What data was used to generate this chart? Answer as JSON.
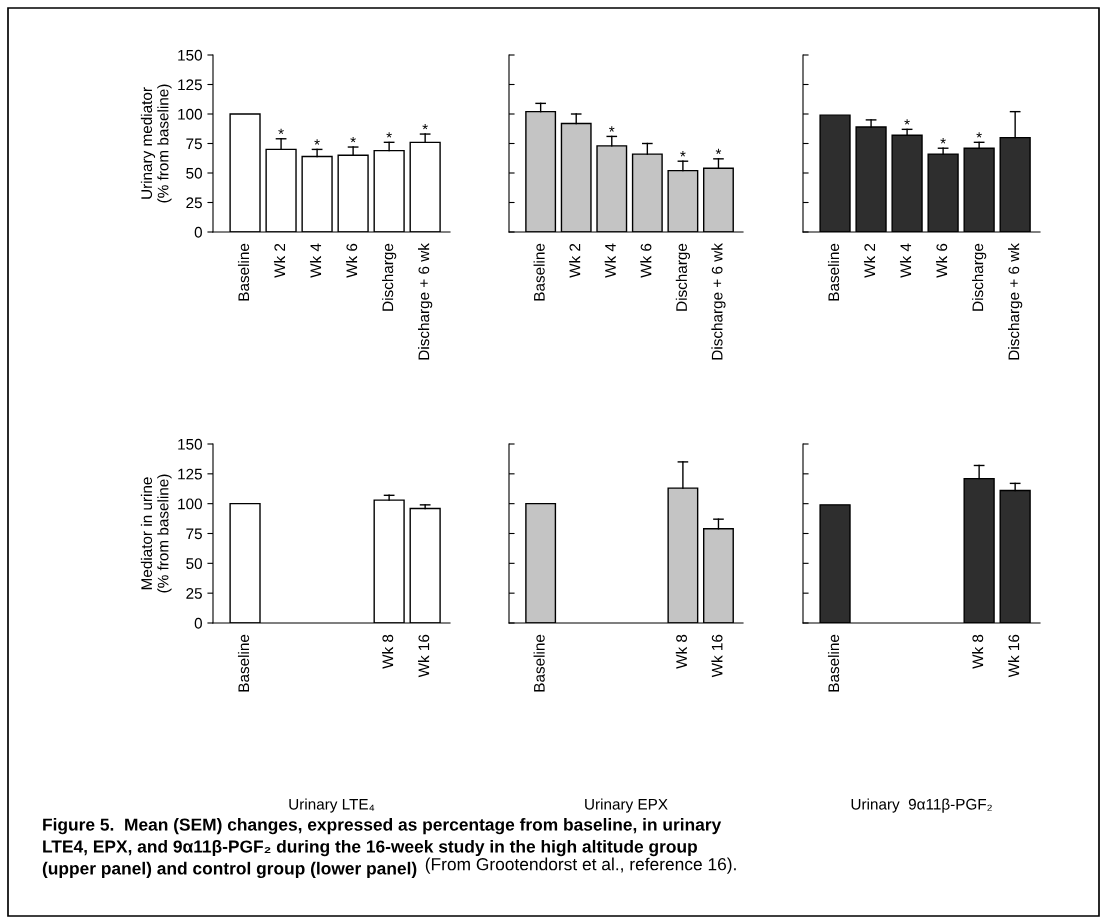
{
  "chart_data": [
    {
      "type": "bar",
      "ylabel": "Urinary mediator\n(% from baseline)",
      "categories": [
        "Baseline",
        "Wk 2",
        "Wk 4",
        "Wk 6",
        "Discharge",
        "Discharge + 6 wk"
      ],
      "series": [
        {
          "color": "#ffffff",
          "values": [
            100,
            70,
            64,
            65,
            69,
            76
          ],
          "errors": [
            null,
            [
              70,
              79
            ],
            [
              64,
              70
            ],
            [
              65,
              72
            ],
            [
              69,
              76
            ],
            [
              76,
              83
            ]
          ]
        }
      ],
      "ylim": [
        0,
        150
      ],
      "yticks": [
        0,
        25,
        50,
        75,
        100,
        125,
        150
      ],
      "grid": false,
      "annotations": [
        {
          "text": "*",
          "x": "Wk 2",
          "y": 82
        },
        {
          "text": "*",
          "x": "Wk 4",
          "y": 73
        },
        {
          "text": "*",
          "x": "Wk 6",
          "y": 75
        },
        {
          "text": "*",
          "x": "Discharge",
          "y": 79
        },
        {
          "text": "*",
          "x": "Discharge + 6 wk",
          "y": 86
        }
      ]
    },
    {
      "type": "bar",
      "categories": [
        "Baseline",
        "Wk 2",
        "Wk 4",
        "Wk 6",
        "Discharge",
        "Discharge + 6 wk"
      ],
      "series": [
        {
          "color": "#c4c4c4",
          "values": [
            102,
            92,
            73,
            66,
            52,
            54
          ],
          "errors": [
            [
              102,
              109
            ],
            [
              92,
              100
            ],
            [
              73,
              81
            ],
            [
              66,
              75
            ],
            [
              52,
              60
            ],
            [
              54,
              62
            ]
          ]
        }
      ],
      "ylim": [
        0,
        150
      ],
      "yticks": [
        {
          "value": 0,
          "label": null
        },
        {
          "value": 25,
          "label": null
        },
        {
          "value": 50,
          "label": null
        },
        {
          "value": 75,
          "label": null
        },
        {
          "value": 100,
          "label": null
        },
        {
          "value": 125,
          "label": null
        },
        {
          "value": 150,
          "label": null
        }
      ],
      "tick_labels": "x",
      "grid": false,
      "annotations": [
        {
          "text": "*",
          "x": "Wk 4",
          "y": 84
        },
        {
          "text": "*",
          "x": "Discharge",
          "y": 63
        },
        {
          "text": "*",
          "x": "Discharge + 6 wk",
          "y": 65
        }
      ]
    },
    {
      "type": "bar",
      "categories": [
        "Baseline",
        "Wk 2",
        "Wk 4",
        "Wk 6",
        "Discharge",
        "Discharge + 6 wk"
      ],
      "series": [
        {
          "color": "#2e2e2e",
          "values": [
            99,
            89,
            82,
            66,
            71,
            80
          ],
          "errors": [
            null,
            [
              89,
              95
            ],
            [
              82,
              87
            ],
            [
              66,
              71
            ],
            [
              71,
              76
            ],
            [
              80,
              102
            ]
          ]
        }
      ],
      "ylim": [
        0,
        150
      ],
      "yticks": [
        {
          "value": 0,
          "label": null
        },
        {
          "value": 25,
          "label": null
        },
        {
          "value": 50,
          "label": null
        },
        {
          "value": 75,
          "label": null
        },
        {
          "value": 100,
          "label": null
        },
        {
          "value": 125,
          "label": null
        },
        {
          "value": 150,
          "label": null
        }
      ],
      "tick_labels": "x",
      "grid": false,
      "annotations": [
        {
          "text": "*",
          "x": "Wk 4",
          "y": 90
        },
        {
          "text": "*",
          "x": "Wk 6",
          "y": 74
        },
        {
          "text": "*",
          "x": "Discharge",
          "y": 79
        }
      ]
    },
    {
      "type": "bar",
      "ylabel": "Mediator in urine\n(% from baseline)",
      "xlabel": "Urinary LTE₄",
      "categories": [
        "Baseline",
        null,
        null,
        null,
        "Wk 8",
        "Wk 16"
      ],
      "series": [
        {
          "color": "#ffffff",
          "values": [
            100,
            null,
            null,
            null,
            103,
            96
          ],
          "errors": [
            null,
            null,
            null,
            null,
            [
              103,
              107
            ],
            [
              96,
              99
            ]
          ]
        }
      ],
      "ylim": [
        0,
        150
      ],
      "yticks": [
        0,
        25,
        50,
        75,
        100,
        125,
        150
      ],
      "grid": false
    },
    {
      "type": "bar",
      "xlabel": "Urinary EPX",
      "categories": [
        "Baseline",
        null,
        null,
        null,
        "Wk 8",
        "Wk 16"
      ],
      "series": [
        {
          "color": "#c4c4c4",
          "values": [
            100,
            null,
            null,
            null,
            113,
            79
          ],
          "errors": [
            null,
            null,
            null,
            null,
            [
              113,
              135
            ],
            [
              79,
              87
            ]
          ]
        }
      ],
      "ylim": [
        0,
        150
      ],
      "yticks": [
        {
          "value": 0,
          "label": null
        },
        {
          "value": 25,
          "label": null
        },
        {
          "value": 50,
          "label": null
        },
        {
          "value": 75,
          "label": null
        },
        {
          "value": 100,
          "label": null
        },
        {
          "value": 125,
          "label": null
        },
        {
          "value": 150,
          "label": null
        }
      ],
      "tick_labels": "x",
      "grid": false
    },
    {
      "type": "bar",
      "xlabel": "Urinary  9α11β-PGF₂",
      "categories": [
        "Baseline",
        null,
        null,
        null,
        "Wk 8",
        "Wk 16"
      ],
      "series": [
        {
          "color": "#2e2e2e",
          "values": [
            99,
            null,
            null,
            null,
            121,
            111
          ],
          "errors": [
            null,
            null,
            null,
            null,
            [
              121,
              132
            ],
            [
              111,
              117
            ]
          ]
        }
      ],
      "ylim": [
        0,
        150
      ],
      "yticks": [
        {
          "value": 0,
          "label": null
        },
        {
          "value": 25,
          "label": null
        },
        {
          "value": 50,
          "label": null
        },
        {
          "value": 75,
          "label": null
        },
        {
          "value": 100,
          "label": null
        },
        {
          "value": 125,
          "label": null
        },
        {
          "value": 150,
          "label": null
        }
      ],
      "tick_labels": "x",
      "grid": false,
      "annotations": [
        "Figure 5.  Mean (SEM) changes, expressed as percentage from baseline, in urinary\nLTE4, EPX, and 9α11β-PGF₂ during the 16-week study in the high altitude group\n(upper panel) and control group (lower panel)",
        "(From Grootendorst et al., reference 16)."
      ]
    }
  ]
}
